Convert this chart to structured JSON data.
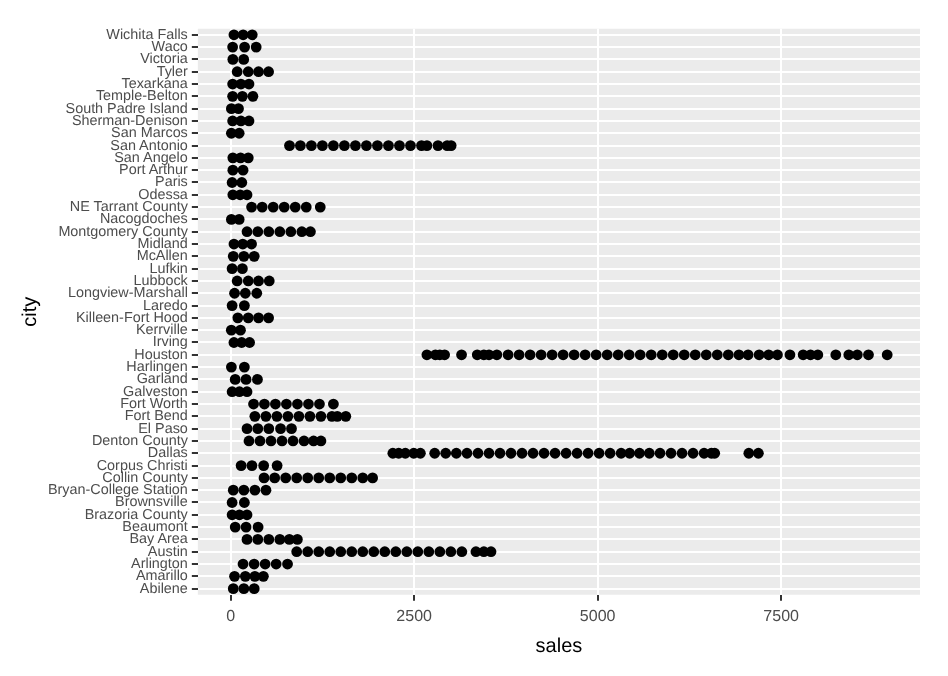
{
  "chart_data": {
    "type": "scatter",
    "orientation": "horizontal",
    "xlabel": "sales",
    "ylabel": "city",
    "grid": true,
    "marker": "circle",
    "categories": [
      "Wichita Falls",
      "Waco",
      "Victoria",
      "Tyler",
      "Texarkana",
      "Temple-Belton",
      "South Padre Island",
      "Sherman-Denison",
      "San Marcos",
      "San Antonio",
      "San Angelo",
      "Port Arthur",
      "Paris",
      "Odessa",
      "NE Tarrant County",
      "Nacogdoches",
      "Montgomery County",
      "Midland",
      "McAllen",
      "Lufkin",
      "Lubbock",
      "Longview-Marshall",
      "Laredo",
      "Killeen-Fort Hood",
      "Kerrville",
      "Irving",
      "Houston",
      "Harlingen",
      "Garland",
      "Galveston",
      "Fort Worth",
      "Fort Bend",
      "El Paso",
      "Denton County",
      "Dallas",
      "Corpus Christi",
      "Collin County",
      "Bryan-College Station",
      "Brownsville",
      "Brazoria County",
      "Beaumont",
      "Bay Area",
      "Austin",
      "Arlington",
      "Amarillo",
      "Abilene"
    ],
    "xlim": [
      -447,
      9392
    ],
    "xticks": [
      0,
      2500,
      5000,
      7500
    ],
    "series": [
      {
        "color": "#000000",
        "x": [
          "Wichita Falls",
          "Wichita Falls",
          "Wichita Falls",
          "Waco",
          "Waco",
          "Waco",
          "Victoria",
          "Victoria",
          "Tyler",
          "Tyler",
          "Tyler",
          "Tyler",
          "Texarkana",
          "Texarkana",
          "Texarkana",
          "Temple-Belton",
          "Temple-Belton",
          "Temple-Belton",
          "South Padre Island",
          "South Padre Island",
          "Sherman-Denison",
          "Sherman-Denison",
          "Sherman-Denison",
          "San Marcos",
          "San Marcos",
          "San Antonio",
          "San Antonio",
          "San Antonio",
          "San Antonio",
          "San Antonio",
          "San Antonio",
          "San Antonio",
          "San Antonio",
          "San Antonio",
          "San Antonio",
          "San Antonio",
          "San Antonio",
          "San Antonio",
          "San Antonio",
          "San Antonio",
          "San Antonio",
          "San Antonio",
          "San Angelo",
          "San Angelo",
          "San Angelo",
          "Port Arthur",
          "Port Arthur",
          "Paris",
          "Paris",
          "Odessa",
          "Odessa",
          "Odessa",
          "NE Tarrant County",
          "NE Tarrant County",
          "NE Tarrant County",
          "NE Tarrant County",
          "NE Tarrant County",
          "NE Tarrant County",
          "NE Tarrant County",
          "Nacogdoches",
          "Nacogdoches",
          "Montgomery County",
          "Montgomery County",
          "Montgomery County",
          "Montgomery County",
          "Montgomery County",
          "Montgomery County",
          "Montgomery County",
          "Midland",
          "Midland",
          "Midland",
          "McAllen",
          "McAllen",
          "McAllen",
          "Lufkin",
          "Lufkin",
          "Lubbock",
          "Lubbock",
          "Lubbock",
          "Lubbock",
          "Longview-Marshall",
          "Longview-Marshall",
          "Longview-Marshall",
          "Laredo",
          "Laredo",
          "Killeen-Fort Hood",
          "Killeen-Fort Hood",
          "Killeen-Fort Hood",
          "Killeen-Fort Hood",
          "Kerrville",
          "Kerrville",
          "Irving",
          "Irving",
          "Irving",
          "Houston",
          "Houston",
          "Houston",
          "Houston",
          "Houston",
          "Houston",
          "Houston",
          "Houston",
          "Houston",
          "Houston",
          "Houston",
          "Houston",
          "Houston",
          "Houston",
          "Houston",
          "Houston",
          "Houston",
          "Houston",
          "Houston",
          "Houston",
          "Houston",
          "Houston",
          "Houston",
          "Houston",
          "Houston",
          "Houston",
          "Houston",
          "Houston",
          "Houston",
          "Houston",
          "Houston",
          "Houston",
          "Houston",
          "Houston",
          "Houston",
          "Houston",
          "Houston",
          "Houston",
          "Houston",
          "Houston",
          "Houston",
          "Houston",
          "Houston",
          "Houston",
          "Harlingen",
          "Harlingen",
          "Garland",
          "Garland",
          "Garland",
          "Galveston",
          "Galveston",
          "Galveston",
          "Fort Worth",
          "Fort Worth",
          "Fort Worth",
          "Fort Worth",
          "Fort Worth",
          "Fort Worth",
          "Fort Worth",
          "Fort Worth",
          "Fort Bend",
          "Fort Bend",
          "Fort Bend",
          "Fort Bend",
          "Fort Bend",
          "Fort Bend",
          "Fort Bend",
          "Fort Bend",
          "Fort Bend",
          "Fort Bend",
          "El Paso",
          "El Paso",
          "El Paso",
          "El Paso",
          "El Paso",
          "Denton County",
          "Denton County",
          "Denton County",
          "Denton County",
          "Denton County",
          "Denton County",
          "Denton County",
          "Denton County",
          "Dallas",
          "Dallas",
          "Dallas",
          "Dallas",
          "Dallas",
          "Dallas",
          "Dallas",
          "Dallas",
          "Dallas",
          "Dallas",
          "Dallas",
          "Dallas",
          "Dallas",
          "Dallas",
          "Dallas",
          "Dallas",
          "Dallas",
          "Dallas",
          "Dallas",
          "Dallas",
          "Dallas",
          "Dallas",
          "Dallas",
          "Dallas",
          "Dallas",
          "Dallas",
          "Dallas",
          "Dallas",
          "Dallas",
          "Dallas",
          "Dallas",
          "Dallas",
          "Dallas",
          "Dallas",
          "Dallas",
          "Corpus Christi",
          "Corpus Christi",
          "Corpus Christi",
          "Corpus Christi",
          "Collin County",
          "Collin County",
          "Collin County",
          "Collin County",
          "Collin County",
          "Collin County",
          "Collin County",
          "Collin County",
          "Collin County",
          "Collin County",
          "Collin County",
          "Bryan-College Station",
          "Bryan-College Station",
          "Bryan-College Station",
          "Bryan-College Station",
          "Brownsville",
          "Brownsville",
          "Brazoria County",
          "Brazoria County",
          "Brazoria County",
          "Beaumont",
          "Beaumont",
          "Beaumont",
          "Bay Area",
          "Bay Area",
          "Bay Area",
          "Bay Area",
          "Bay Area",
          "Bay Area",
          "Austin",
          "Austin",
          "Austin",
          "Austin",
          "Austin",
          "Austin",
          "Austin",
          "Austin",
          "Austin",
          "Austin",
          "Austin",
          "Austin",
          "Austin",
          "Austin",
          "Austin",
          "Austin",
          "Austin",
          "Austin",
          "Austin",
          "Arlington",
          "Arlington",
          "Arlington",
          "Arlington",
          "Arlington",
          "Amarillo",
          "Amarillo",
          "Amarillo",
          "Amarillo",
          "Abilene",
          "Abilene",
          "Abilene"
        ],
        "values": [
          45,
          170,
          294,
          27,
          190,
          348,
          30,
          178,
          89,
          240,
          380,
          517,
          27,
          140,
          250,
          27,
          160,
          303,
          10,
          107,
          27,
          140,
          250,
          10,
          116,
          802,
          950,
          1100,
          1250,
          1400,
          1550,
          1700,
          1850,
          2000,
          2150,
          2300,
          2450,
          2600,
          2674,
          2825,
          2950,
          3004,
          30,
          135,
          240,
          30,
          169,
          20,
          152,
          30,
          130,
          223,
          285,
          430,
          580,
          730,
          880,
          1030,
          1221,
          10,
          116,
          223,
          370,
          520,
          670,
          820,
          970,
          1087,
          45,
          165,
          285,
          36,
          180,
          321,
          20,
          160,
          89,
          240,
          380,
          526,
          53,
          200,
          356,
          20,
          187,
          98,
          240,
          380,
          517,
          9,
          134,
          45,
          150,
          258,
          2674,
          2790,
          2850,
          2915,
          3146,
          3360,
          3450,
          3520,
          3627,
          3780,
          3930,
          4080,
          4230,
          4380,
          4530,
          4680,
          4830,
          4980,
          5130,
          5280,
          5430,
          5580,
          5730,
          5880,
          6030,
          6180,
          6330,
          6480,
          6630,
          6780,
          6925,
          7050,
          7200,
          7330,
          7450,
          7620,
          7800,
          7900,
          8000,
          8245,
          8422,
          8538,
          8690,
          8945,
          10,
          187,
          62,
          210,
          365,
          20,
          120,
          223,
          312,
          460,
          610,
          760,
          910,
          1060,
          1210,
          1400,
          330,
          480,
          630,
          780,
          930,
          1080,
          1230,
          1380,
          1453,
          1569,
          223,
          370,
          520,
          680,
          829,
          250,
          400,
          550,
          700,
          850,
          1000,
          1130,
          1230,
          2210,
          2290,
          2380,
          2495,
          2585,
          2780,
          2930,
          3075,
          3220,
          3370,
          3520,
          3670,
          3820,
          3970,
          4120,
          4270,
          4420,
          4570,
          4720,
          4870,
          5020,
          5170,
          5320,
          5436,
          5570,
          5704,
          5850,
          6000,
          6150,
          6300,
          6450,
          6550,
          6595,
          7060,
          7190,
          143,
          290,
          450,
          633,
          455,
          600,
          750,
          900,
          1050,
          1200,
          1350,
          1500,
          1650,
          1800,
          1934,
          36,
          180,
          330,
          481,
          20,
          187,
          20,
          120,
          223,
          62,
          210,
          374,
          223,
          370,
          520,
          670,
          800,
          909,
          900,
          1050,
          1200,
          1350,
          1500,
          1650,
          1800,
          1950,
          2100,
          2250,
          2400,
          2550,
          2700,
          2850,
          3000,
          3150,
          3342,
          3450,
          3547,
          169,
          320,
          470,
          620,
          775,
          53,
          200,
          330,
          446,
          36,
          180,
          321
        ]
      }
    ]
  }
}
